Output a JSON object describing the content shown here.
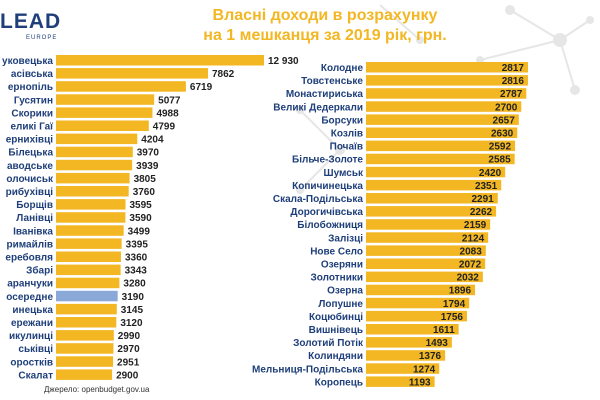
{
  "logo": {
    "text": "LEAD",
    "sub": "EUROPE"
  },
  "title": {
    "line1": "Власні доходи в розрахунку",
    "line2": "на 1 мешканця за 2019 рік, грн."
  },
  "source": "Джерело:  openbudget.gov.ua",
  "colors": {
    "bar": "#f2b722",
    "highlight": "#8aa8d8",
    "label": "#1f3f7a",
    "title": "#f2b722"
  },
  "chart_data": [
    {
      "type": "bar",
      "orientation": "horizontal",
      "categories": [
        "уковецька",
        "асівська",
        "ернопіль",
        "Гусятин",
        "Скорики",
        "еликі Гаї",
        "ернихівці",
        "Білецька",
        "аводське",
        "олочиськ",
        "рибухівці",
        "Борщів",
        "Ланівці",
        "Іванівка",
        "римайлів",
        "еребовля",
        "Збарі",
        "аранчуки",
        "осередне",
        "инецька",
        "ережани",
        "икулинці",
        "ськівці",
        "оростків",
        "Скалат"
      ],
      "values": [
        12930,
        7862,
        6719,
        5077,
        4988,
        4799,
        4204,
        3970,
        3939,
        3805,
        3760,
        3595,
        3590,
        3499,
        3395,
        3360,
        3343,
        3280,
        3190,
        3145,
        3120,
        2990,
        2970,
        2951,
        2900
      ],
      "value_labels": [
        "12 930",
        "7862",
        "6719",
        "5077",
        "4988",
        "4799",
        "4204",
        "3970",
        "3939",
        "3805",
        "3760",
        "3595",
        "3590",
        "3499",
        "3395",
        "3360",
        "3343",
        "3280",
        "3190",
        "3145",
        "3120",
        "2990",
        "2970",
        "2951",
        "2900"
      ],
      "highlight_index": 18
    },
    {
      "type": "bar",
      "orientation": "horizontal",
      "categories": [
        "Колодне",
        "Товстенське",
        "Монастириська",
        "Великі Дедеркали",
        "Борсуки",
        "Козлів",
        "Почаїв",
        "Більче-Золоте",
        "Шумськ",
        "Копичинецька",
        "Скала-Подільська",
        "Дорогичівська",
        "Білобожниця",
        "Залізці",
        "Нове Село",
        "Озеряни",
        "Золотники",
        "Озерна",
        "Лопушне",
        "Коцюбинці",
        "Вишнівець",
        "Золотий Потік",
        "Колиндяни",
        "Мельниця-Подільська",
        "Коропець"
      ],
      "values": [
        2817,
        2816,
        2787,
        2700,
        2657,
        2630,
        2592,
        2585,
        2420,
        2351,
        2291,
        2262,
        2159,
        2124,
        2083,
        2072,
        2032,
        1896,
        1794,
        1756,
        1611,
        1493,
        1376,
        1274,
        1193
      ],
      "value_labels": [
        "2817",
        "2816",
        "2787",
        "2700",
        "2657",
        "2630",
        "2592",
        "2585",
        "2420",
        "2351",
        "2291",
        "2262",
        "2159",
        "2124",
        "2083",
        "2072",
        "2032",
        "1896",
        "1794",
        "1756",
        "1611",
        "1493",
        "1376",
        "1274",
        "1193"
      ]
    }
  ]
}
